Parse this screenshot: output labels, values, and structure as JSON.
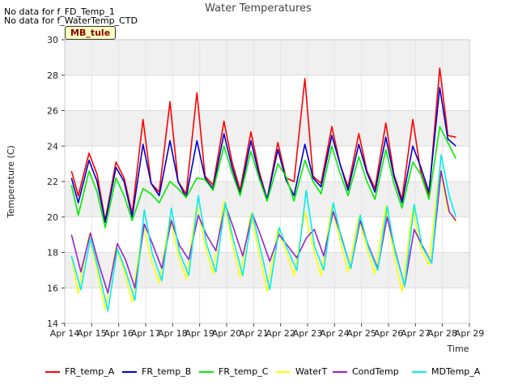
{
  "notices": [
    "No data for f_FD_Temp_1",
    "No data for f_WaterTemp_CTD"
  ],
  "badge": "MB_tule",
  "chart_data": {
    "type": "line",
    "title": "Water Temperatures",
    "xlabel": "Time",
    "ylabel": "Temperature (C)",
    "xlim": [
      14,
      29
    ],
    "ylim": [
      14,
      30
    ],
    "x_ticks": [
      14,
      15,
      16,
      17,
      18,
      19,
      20,
      21,
      22,
      23,
      24,
      25,
      26,
      27,
      28,
      29
    ],
    "x_tick_labels": [
      "Apr 14",
      "Apr 15",
      "Apr 16",
      "Apr 17",
      "Apr 18",
      "Apr 19",
      "Apr 20",
      "Apr 21",
      "Apr 22",
      "Apr 23",
      "Apr 24",
      "Apr 25",
      "Apr 26",
      "Apr 27",
      "Apr 28",
      "Apr 29"
    ],
    "y_ticks": [
      14,
      16,
      18,
      20,
      22,
      24,
      26,
      28,
      30
    ],
    "grid": true,
    "legend_position": "bottom",
    "series": [
      {
        "name": "FR_temp_A",
        "color": "#ff0000",
        "x": [
          14.25,
          14.5,
          14.9,
          15.2,
          15.5,
          15.9,
          16.2,
          16.5,
          16.9,
          17.2,
          17.5,
          17.9,
          18.2,
          18.5,
          18.9,
          19.2,
          19.5,
          19.9,
          20.2,
          20.5,
          20.9,
          21.2,
          21.5,
          21.9,
          22.2,
          22.5,
          22.9,
          23.2,
          23.5,
          23.9,
          24.2,
          24.5,
          24.9,
          25.2,
          25.5,
          25.9,
          26.2,
          26.5,
          26.9,
          27.2,
          27.5,
          27.9,
          28.2,
          28.5
        ],
        "y": [
          22.6,
          21.2,
          23.6,
          22.4,
          19.8,
          23.1,
          22.2,
          20.2,
          25.5,
          21.9,
          21.4,
          26.5,
          22.0,
          21.3,
          27.0,
          22.3,
          21.8,
          25.4,
          23.1,
          21.5,
          24.8,
          22.6,
          21.0,
          24.2,
          22.2,
          22.0,
          27.8,
          22.3,
          21.9,
          25.1,
          23.0,
          21.7,
          24.7,
          22.6,
          21.6,
          25.3,
          22.4,
          21.0,
          25.5,
          22.5,
          21.2,
          28.4,
          24.6,
          24.5
        ]
      },
      {
        "name": "FR_temp_B",
        "color": "#0000cc",
        "x": [
          14.25,
          14.5,
          14.9,
          15.2,
          15.5,
          15.9,
          16.2,
          16.5,
          16.9,
          17.2,
          17.5,
          17.9,
          18.2,
          18.5,
          18.9,
          19.2,
          19.5,
          19.9,
          20.2,
          20.5,
          20.9,
          21.2,
          21.5,
          21.9,
          22.2,
          22.5,
          22.9,
          23.2,
          23.5,
          23.9,
          24.2,
          24.5,
          24.9,
          25.2,
          25.5,
          25.9,
          26.2,
          26.5,
          26.9,
          27.2,
          27.5,
          27.9,
          28.2,
          28.5
        ],
        "y": [
          22.2,
          20.8,
          23.2,
          22.0,
          19.7,
          22.8,
          22.0,
          20.0,
          24.1,
          21.9,
          21.2,
          24.3,
          22.0,
          21.1,
          24.3,
          22.2,
          21.6,
          24.7,
          22.8,
          21.3,
          24.3,
          22.4,
          21.0,
          23.8,
          22.1,
          21.2,
          24.1,
          22.2,
          21.7,
          24.6,
          23.0,
          21.5,
          24.1,
          22.5,
          21.4,
          24.5,
          22.3,
          20.8,
          24.0,
          22.8,
          21.4,
          27.3,
          24.4,
          24.0
        ]
      },
      {
        "name": "FR_temp_C",
        "color": "#00ee00",
        "x": [
          14.25,
          14.5,
          14.9,
          15.2,
          15.5,
          15.9,
          16.2,
          16.5,
          16.9,
          17.2,
          17.5,
          17.9,
          18.2,
          18.5,
          18.9,
          19.2,
          19.5,
          19.9,
          20.2,
          20.5,
          20.9,
          21.2,
          21.5,
          21.9,
          22.2,
          22.5,
          22.9,
          23.2,
          23.5,
          23.9,
          24.2,
          24.5,
          24.9,
          25.2,
          25.5,
          25.9,
          26.2,
          26.5,
          26.9,
          27.2,
          27.5,
          27.9,
          28.2,
          28.5
        ],
        "y": [
          21.8,
          20.1,
          22.6,
          21.4,
          19.4,
          22.2,
          21.2,
          19.8,
          21.6,
          21.3,
          20.8,
          22.0,
          21.6,
          21.1,
          22.2,
          22.1,
          21.5,
          24.0,
          22.5,
          21.2,
          23.7,
          22.2,
          20.9,
          23.0,
          22.3,
          20.9,
          23.2,
          22.0,
          21.3,
          24.0,
          22.5,
          21.2,
          23.4,
          22.0,
          21.0,
          23.8,
          21.9,
          20.5,
          23.1,
          22.4,
          21.0,
          25.1,
          24.2,
          23.3
        ]
      },
      {
        "name": "WaterT",
        "color": "#ffff00",
        "x": [
          14.25,
          14.5,
          14.9,
          15.2,
          15.5,
          15.9,
          16.2,
          16.5,
          16.9,
          17.2,
          17.5,
          17.9,
          18.2,
          18.5,
          18.9,
          19.2,
          19.5,
          19.9,
          20.2,
          20.5,
          20.9,
          21.2,
          21.5,
          21.9,
          22.2,
          22.5,
          22.9,
          23.2,
          23.5,
          23.9,
          24.2,
          24.5,
          24.9,
          25.2,
          25.5,
          25.9,
          26.2,
          26.5,
          26.9,
          27.2,
          27.5,
          27.9,
          28.2,
          28.5
        ],
        "y": [
          17.8,
          15.7,
          19.0,
          17.0,
          14.8,
          18.3,
          17.0,
          15.2,
          19.6,
          17.6,
          16.3,
          20.0,
          17.9,
          16.5,
          20.7,
          18.4,
          16.8,
          20.9,
          18.6,
          16.6,
          20.2,
          18.0,
          15.8,
          19.3,
          18.1,
          16.7,
          20.3,
          18.3,
          16.7,
          20.6,
          18.7,
          16.9,
          20.0,
          18.2,
          16.8,
          20.6,
          17.9,
          15.8,
          20.5,
          18.2,
          17.3,
          22.8,
          20.4,
          19.7
        ]
      },
      {
        "name": "CondTemp",
        "color": "#9922cc",
        "x": [
          14.25,
          14.6,
          14.95,
          15.25,
          15.6,
          15.95,
          16.25,
          16.6,
          16.95,
          17.25,
          17.6,
          17.95,
          18.25,
          18.6,
          18.95,
          19.25,
          19.6,
          19.95,
          20.25,
          20.6,
          20.95,
          21.25,
          21.6,
          21.95,
          22.25,
          22.6,
          22.95,
          23.25,
          23.6,
          23.95,
          24.25,
          24.6,
          24.95,
          25.25,
          25.6,
          25.95,
          26.25,
          26.6,
          26.95,
          27.25,
          27.6,
          27.95,
          28.25,
          28.5
        ],
        "y": [
          19.0,
          16.9,
          19.1,
          17.4,
          15.7,
          18.5,
          17.6,
          16.0,
          19.6,
          18.5,
          17.1,
          19.8,
          18.4,
          17.6,
          20.1,
          19.0,
          18.1,
          20.7,
          19.4,
          17.8,
          20.2,
          19.0,
          17.5,
          19.0,
          18.4,
          17.7,
          18.8,
          19.3,
          17.8,
          20.3,
          18.9,
          17.1,
          19.8,
          18.4,
          17.1,
          20.0,
          18.1,
          16.1,
          19.3,
          18.4,
          17.4,
          22.6,
          20.3,
          19.8
        ]
      },
      {
        "name": "MDTemp_A",
        "color": "#00eeee",
        "x": [
          14.25,
          14.6,
          14.95,
          15.25,
          15.6,
          15.95,
          16.25,
          16.6,
          16.95,
          17.25,
          17.6,
          17.95,
          18.25,
          18.6,
          18.95,
          19.25,
          19.6,
          19.95,
          20.25,
          20.6,
          20.95,
          21.25,
          21.6,
          21.95,
          22.25,
          22.6,
          22.95,
          23.25,
          23.6,
          23.95,
          24.25,
          24.6,
          24.95,
          25.25,
          25.6,
          25.95,
          26.25,
          26.6,
          26.95,
          27.25,
          27.6,
          27.95,
          28.25,
          28.5
        ],
        "y": [
          17.8,
          15.9,
          18.8,
          17.0,
          14.7,
          18.2,
          17.0,
          15.3,
          20.4,
          17.9,
          16.4,
          20.5,
          18.0,
          16.7,
          21.2,
          18.5,
          16.9,
          20.8,
          18.7,
          16.7,
          20.2,
          18.2,
          15.9,
          19.4,
          18.2,
          17.0,
          21.5,
          18.4,
          17.0,
          20.8,
          18.8,
          17.1,
          20.1,
          18.3,
          17.0,
          20.6,
          18.0,
          16.1,
          20.7,
          18.3,
          17.4,
          23.5,
          21.2,
          20.0
        ]
      }
    ]
  }
}
